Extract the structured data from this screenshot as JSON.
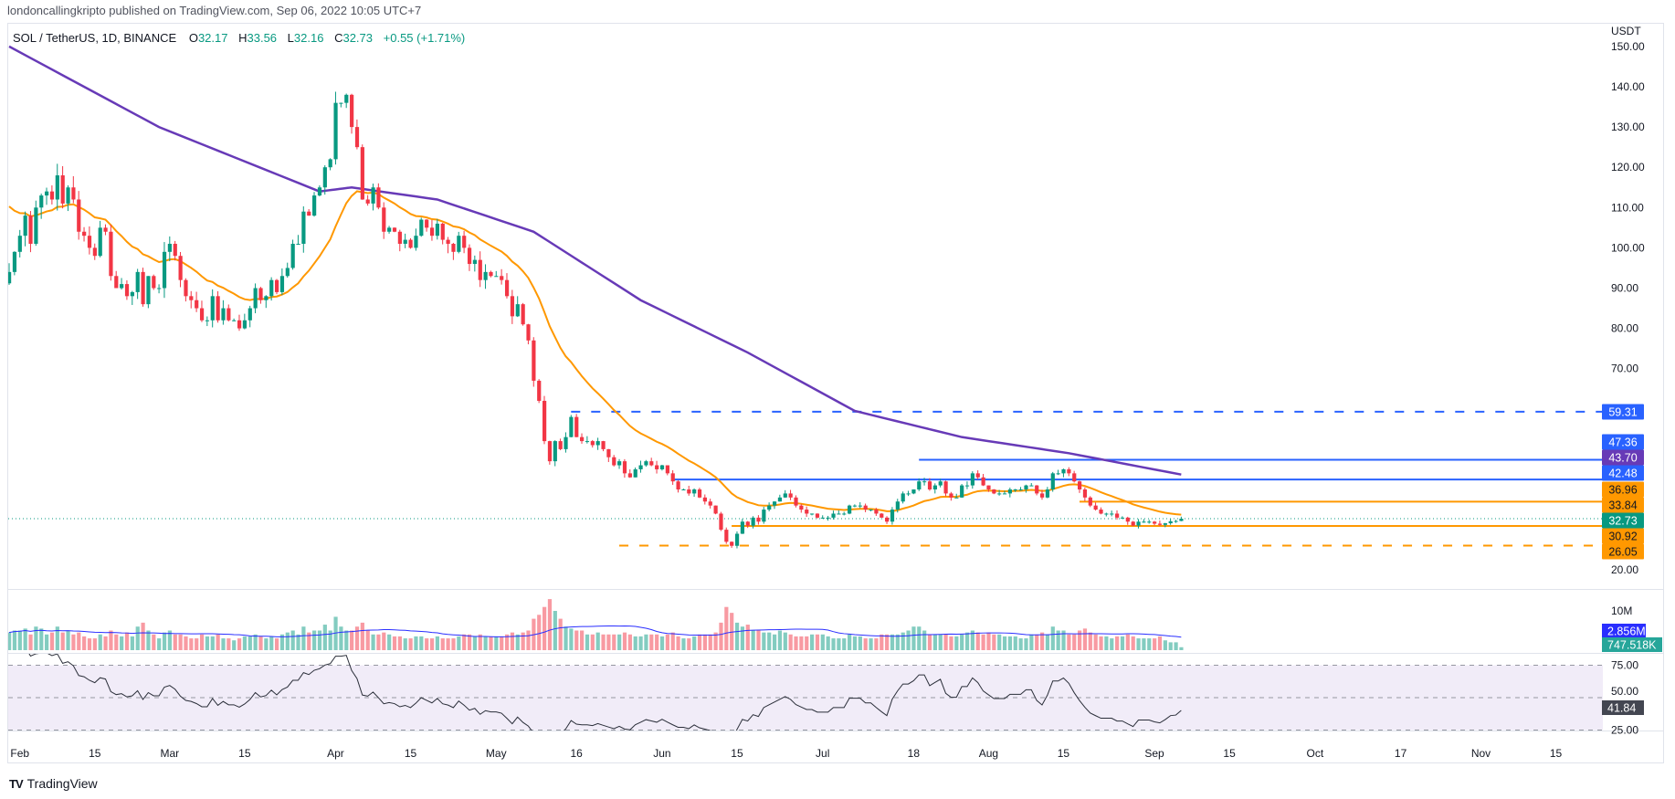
{
  "header": {
    "author_line": "londoncallingkripto published on TradingView.com, Sep 06, 2022 10:05 UTC+7"
  },
  "legend": {
    "symbol": "SOL / TetherUS, 1D, BINANCE",
    "o_label": "O",
    "o": "32.17",
    "h_label": "H",
    "h": "33.56",
    "l_label": "L",
    "l": "32.16",
    "c_label": "C",
    "c": "32.73",
    "change": "+0.55 (+1.71%)"
  },
  "footer": {
    "brand": "TradingView"
  },
  "colors": {
    "up": "#089981",
    "down": "#f23645",
    "ema": "#ff9800",
    "ma_slow": "#673ab7",
    "blue": "#2962ff",
    "orange": "#ff9800",
    "vol_ma": "#2a2eff",
    "rsi_bg": "#ede7f6"
  },
  "chart_data": {
    "type": "candlestick",
    "title": "SOL / TetherUS, 1D, BINANCE",
    "currency": "USDT",
    "start_date": "2022-01-30",
    "end_date": "2022-09-06",
    "ylim": [
      18,
      152
    ],
    "y_ticks": [
      "150.00",
      "140.00",
      "130.00",
      "120.00",
      "110.00",
      "100.00",
      "90.00",
      "80.00",
      "70.00",
      "20.00"
    ],
    "x_ticks": [
      {
        "label": "Feb",
        "i": 2
      },
      {
        "label": "15",
        "i": 16
      },
      {
        "label": "Mar",
        "i": 30
      },
      {
        "label": "15",
        "i": 44
      },
      {
        "label": "Apr",
        "i": 61
      },
      {
        "label": "15",
        "i": 75
      },
      {
        "label": "May",
        "i": 91
      },
      {
        "label": "16",
        "i": 106
      },
      {
        "label": "Jun",
        "i": 122
      },
      {
        "label": "15",
        "i": 136
      },
      {
        "label": "Jul",
        "i": 152
      },
      {
        "label": "18",
        "i": 169
      },
      {
        "label": "Aug",
        "i": 183
      },
      {
        "label": "15",
        "i": 197
      },
      {
        "label": "Sep",
        "i": 214
      },
      {
        "label": "15",
        "i": 228
      },
      {
        "label": "Oct",
        "i": 244
      },
      {
        "label": "17",
        "i": 260
      },
      {
        "label": "Nov",
        "i": 275
      },
      {
        "label": "15",
        "i": 289
      }
    ],
    "closes": [
      94,
      99,
      103,
      108,
      101,
      110,
      113,
      114,
      112,
      118,
      111,
      115,
      112,
      104,
      103,
      100,
      98,
      105,
      104,
      93,
      90,
      91,
      88,
      89,
      94,
      86,
      93,
      90,
      90,
      99,
      101,
      98,
      92,
      88,
      87,
      85,
      82,
      82,
      88,
      82,
      85,
      82,
      82,
      80,
      82,
      85,
      90,
      87,
      88,
      92,
      89,
      93,
      95,
      101,
      101,
      109,
      108,
      113,
      115,
      120,
      122,
      136,
      136,
      138,
      130,
      125,
      112,
      111,
      115,
      110,
      104,
      105,
      104,
      101,
      102,
      100,
      103,
      107,
      105,
      103,
      106,
      102,
      101,
      99,
      103,
      100,
      96,
      97,
      92,
      94,
      93,
      93,
      92,
      88,
      83,
      86,
      81,
      77,
      67,
      62,
      52,
      47,
      52,
      50,
      53,
      58,
      53,
      52,
      52,
      51,
      52,
      50,
      48,
      46,
      47,
      44,
      43,
      45,
      46,
      47,
      46,
      45,
      46,
      44,
      42,
      40,
      40,
      39,
      40,
      38,
      37,
      36,
      34,
      30,
      27,
      26,
      29,
      32,
      31,
      33,
      32,
      35,
      36,
      37,
      38,
      39,
      38,
      36,
      35,
      34,
      34,
      33,
      33,
      33,
      34,
      34,
      34,
      36,
      36,
      36,
      35,
      35,
      34,
      33,
      32,
      35,
      37,
      39,
      39,
      40,
      42,
      42,
      40,
      41,
      42,
      39,
      38,
      38,
      41,
      41,
      44,
      43,
      41,
      40,
      39,
      39,
      39,
      40,
      40,
      40,
      41,
      41,
      39,
      38,
      40,
      44,
      44,
      45,
      44,
      42,
      40,
      38,
      36,
      35,
      34,
      34,
      34,
      33,
      33,
      32,
      31,
      32,
      32,
      32,
      31.5,
      31.2,
      31.6,
      32.1,
      32.17,
      32.73
    ],
    "volume_millions": [
      4.5,
      5,
      5,
      5.5,
      4,
      6,
      5.5,
      4,
      4.5,
      6,
      4.5,
      5,
      4,
      4.5,
      3.5,
      3,
      3,
      4,
      3.5,
      5,
      4,
      3.5,
      4.5,
      3.5,
      6,
      7,
      5,
      4,
      3,
      4.5,
      5,
      4,
      4,
      3.5,
      3,
      3,
      4,
      3.5,
      3.5,
      4,
      3,
      3,
      2.5,
      3,
      3.5,
      3.5,
      4,
      3.5,
      3,
      3.5,
      3,
      4,
      4.5,
      5,
      4,
      6,
      4.5,
      5,
      5,
      6.5,
      5,
      8.5,
      6,
      5,
      5,
      6,
      7,
      5,
      4,
      4,
      4.5,
      4,
      3.5,
      3.5,
      3,
      3,
      3.5,
      3.5,
      3,
      3,
      3.5,
      3,
      3,
      3,
      3.5,
      4,
      4,
      3.5,
      4,
      3.5,
      3.5,
      3.5,
      3.5,
      4,
      4.5,
      4,
      4.5,
      5,
      8,
      9,
      11,
      13,
      10,
      8,
      6,
      5.5,
      5,
      5,
      4,
      4,
      4.5,
      4,
      4,
      4,
      4,
      4.5,
      4,
      3.5,
      3.5,
      4,
      4,
      4,
      3.5,
      4,
      4.5,
      3.5,
      3,
      3,
      3.5,
      4,
      4,
      4,
      4.5,
      7,
      11,
      9.5,
      7,
      6,
      6.5,
      5,
      5,
      4.5,
      4.5,
      4,
      5,
      4.5,
      4,
      3.5,
      3.5,
      3.5,
      4,
      4,
      4,
      3.5,
      3,
      3,
      3,
      4,
      3.5,
      3.5,
      3,
      3,
      3,
      4,
      4,
      4,
      4,
      4.5,
      5,
      6,
      6,
      5,
      4,
      4,
      4,
      4,
      3.5,
      3.5,
      4,
      4.5,
      5,
      4.5,
      4,
      4.5,
      4,
      4,
      3.5,
      3.5,
      3.5,
      3,
      3,
      4,
      4,
      4.5,
      4,
      6,
      5,
      5,
      4,
      4,
      5,
      5.5,
      4.5,
      4,
      3.5,
      3.5,
      3,
      3.5,
      3.5,
      4,
      3.5,
      3,
      3,
      3,
      3,
      3.5,
      2.5,
      2,
      2,
      0.75
    ],
    "ema_period": 20,
    "ema_seed": 112,
    "ma_slow_anchors": [
      [
        0,
        150
      ],
      [
        28,
        130
      ],
      [
        58,
        114
      ],
      [
        64,
        115
      ],
      [
        80,
        112
      ],
      [
        98,
        104
      ],
      [
        118,
        87
      ],
      [
        138,
        74
      ],
      [
        158,
        59.5
      ],
      [
        178,
        53
      ],
      [
        198,
        49
      ],
      [
        219,
        43.7
      ]
    ],
    "levels": [
      {
        "value": 59.31,
        "label": "59.31",
        "color": "#2962ff",
        "style": "dashed",
        "from_i": 105
      },
      {
        "value": 47.36,
        "label": "47.36",
        "color": "#2962ff",
        "style": "solid",
        "from_i": 170
      },
      {
        "value": 42.48,
        "label": "42.48",
        "color": "#2962ff",
        "style": "solid",
        "from_i": 124
      },
      {
        "value": 36.96,
        "label": "36.96",
        "color": "#ff9800",
        "style": "solid",
        "from_i": 200
      },
      {
        "value": 30.92,
        "label": "30.92",
        "color": "#ff9800",
        "style": "solid",
        "from_i": 135
      },
      {
        "value": 26.05,
        "label": "26.05",
        "color": "#ff9800",
        "style": "dashed",
        "from_i": 114
      }
    ],
    "price_tags": [
      {
        "label": "59.31",
        "bg": "#2962ff",
        "fg": "#ffffff"
      },
      {
        "label": "47.36",
        "bg": "#2962ff",
        "fg": "#ffffff"
      },
      {
        "label": "43.70",
        "bg": "#673ab7",
        "fg": "#ffffff"
      },
      {
        "label": "42.48",
        "bg": "#2962ff",
        "fg": "#ffffff"
      },
      {
        "label": "36.96",
        "bg": "#ff9800",
        "fg": "#131722"
      },
      {
        "label": "33.84",
        "bg": "#ff9800",
        "fg": "#131722"
      },
      {
        "label": "32.73",
        "bg": "#089981",
        "fg": "#ffffff"
      },
      {
        "label": "30.92",
        "bg": "#ff9800",
        "fg": "#131722"
      },
      {
        "label": "26.05",
        "bg": "#ff9800",
        "fg": "#131722"
      }
    ],
    "volume_pane": {
      "tick": "10M",
      "ma_tag": "2.856M",
      "vol_tag": "747.518K"
    },
    "rsi_pane": {
      "ticks": [
        "75.00",
        "50.00",
        "25.00"
      ],
      "tag": "41.84",
      "period": 14
    }
  }
}
